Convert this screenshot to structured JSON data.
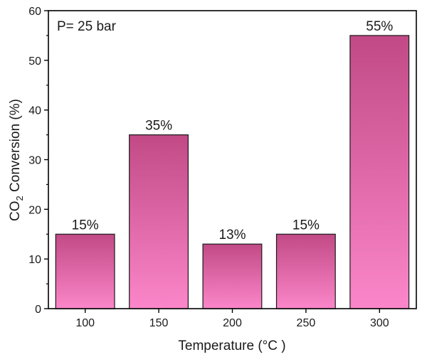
{
  "chart_data": {
    "type": "bar",
    "categories": [
      "100",
      "150",
      "200",
      "250",
      "300"
    ],
    "values": [
      15,
      35,
      13,
      15,
      55
    ],
    "data_labels": [
      "15%",
      "35%",
      "13%",
      "15%",
      "55%"
    ],
    "annotation": "P= 25 bar",
    "xlabel": "Temperature (°C )",
    "ylabel": {
      "prefix": "CO",
      "subscript": "2",
      "suffix": " Conversion (%)"
    },
    "ylim": [
      0,
      60
    ],
    "yticks": [
      0,
      10,
      20,
      30,
      40,
      50,
      60
    ],
    "grid": false,
    "bar_color_top": "#c14a86",
    "bar_color_bottom": "#fb86c9"
  }
}
